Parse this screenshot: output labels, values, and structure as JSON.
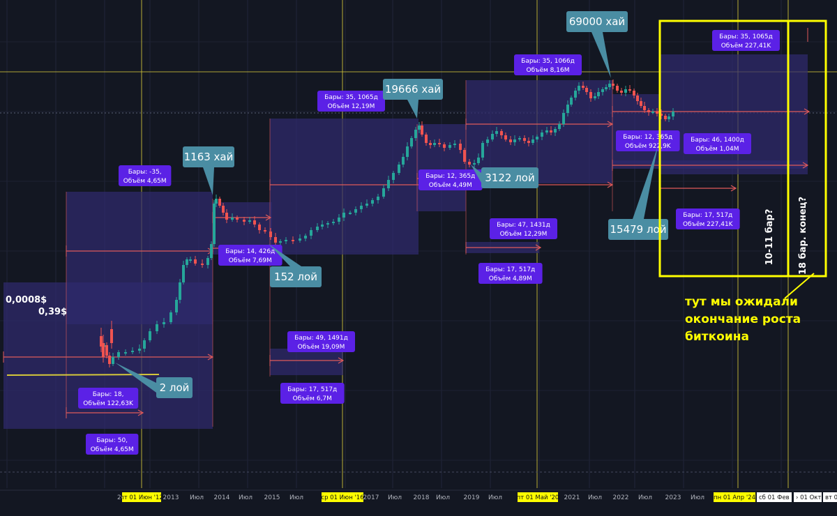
{
  "chart_data": {
    "type": "candlestick",
    "title": "",
    "xlabel": "",
    "ylabel": "",
    "y_scale": "log",
    "grid": true,
    "x_ticks": [
      "2013",
      "Июл",
      "2014",
      "Июл",
      "2015",
      "Июл",
      "2017",
      "Июл",
      "2018",
      "Июл",
      "2019",
      "Июл",
      "2021",
      "Июл",
      "2022",
      "Июл",
      "2023",
      "Июл"
    ],
    "x_highlight_labels": [
      "пт 01 Июн '12",
      "ср 01 Июн '16",
      "пт 01 Май '20",
      "пн 01 Апр '24"
    ],
    "x_right_labels": [
      "сб 01 Фев '25",
      "› 01 Окт",
      "вт 0"
    ],
    "x_left_fragment": "20",
    "price_labels": [
      "0,0008$",
      "0,39$"
    ],
    "points": [
      {
        "label": "2 лой",
        "value": 2,
        "date": "2011-11"
      },
      {
        "label": "1163 хай",
        "value": 1163,
        "date": "2013-12"
      },
      {
        "label": "152 лой",
        "value": 152,
        "date": "2015-01"
      },
      {
        "label": "19666 хай",
        "value": 19666,
        "date": "2017-12"
      },
      {
        "label": "3122 лой",
        "value": 3122,
        "date": "2018-12"
      },
      {
        "label": "69000 хай",
        "value": 69000,
        "date": "2021-11"
      },
      {
        "label": "15479 лой",
        "value": 15479,
        "date": "2022-11"
      }
    ],
    "measurements": [
      {
        "bars": "Бары: -35,",
        "volume": "Объём 4,65M"
      },
      {
        "bars": "Бары: 18,",
        "volume": "Объём 122,63K"
      },
      {
        "bars": "Бары: 50,",
        "volume": "Объём 4,65M"
      },
      {
        "bars": "Бары: 14, 426д",
        "volume": "Объём 7,69M"
      },
      {
        "bars": "Бары: 49, 1491д",
        "volume": "Объём 19,09M"
      },
      {
        "bars": "Бары: 17, 517д",
        "volume": "Объём 6,7M"
      },
      {
        "bars": "Бары: 35, 1065д",
        "volume": "Объём 12,19M"
      },
      {
        "bars": "Бары: 12, 365д",
        "volume": "Объём 4,49M"
      },
      {
        "bars": "Бары: 47, 1431д",
        "volume": "Объём 12,29M"
      },
      {
        "bars": "Бары: 17, 517д",
        "volume": "Объём 4,89M"
      },
      {
        "bars": "Бары: 35, 1066д",
        "volume": "Объём 8,16M"
      },
      {
        "bars": "Бары: 12, 365д",
        "volume": "Объём 922,9K"
      },
      {
        "bars": "Бары: 46, 1400д",
        "volume": "Объём 1,04M"
      },
      {
        "bars": "Бары: 17, 517д",
        "volume": "Объём 227,41K"
      },
      {
        "bars": "Бары: 35, 1065д",
        "volume": "Объём 227,41K"
      }
    ],
    "annotations": [
      "10-11 бар?",
      "18 бар. конец?",
      "тут мы ожидали окончание роста биткоина"
    ]
  },
  "colors": {
    "background": "#131722",
    "bull": "#26a69a",
    "bear": "#ef5350",
    "range_box": "#2f2a6e",
    "measure_label": "#5b21e6",
    "callout": "#4a8da3",
    "highlight": "#ffff00",
    "arrow": "#e05a5a"
  }
}
